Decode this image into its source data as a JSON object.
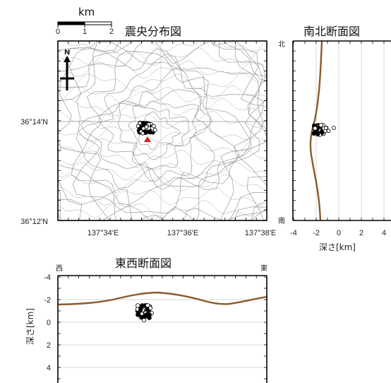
{
  "scale_bar": {
    "unit": "km",
    "ticks": [
      "0",
      "1",
      "2"
    ]
  },
  "map": {
    "title": "震央分布図",
    "north_label": "N",
    "lat_labels": [
      "36°14'N",
      "36°12'N"
    ],
    "lon_labels": [
      "137°34'E",
      "137°36'E",
      "137°38'E"
    ]
  },
  "ns_section": {
    "title": "南北断面図",
    "north_label": "北",
    "south_label": "南",
    "xlabel": "深さ[km]",
    "x_ticks": [
      "-4",
      "-2",
      "0",
      "2",
      "4"
    ]
  },
  "ew_section": {
    "title": "東西断面図",
    "west_label": "西",
    "east_label": "東",
    "ylabel": "深さ[km]",
    "y_ticks": [
      "-4",
      "-2",
      "0",
      "2",
      "4"
    ]
  },
  "colors": {
    "contour": "#8a8a8a",
    "topography_profile": "#8b5a2b",
    "epicenter": "#000000",
    "volcano_marker": "#d42020"
  },
  "icons": [
    "north-arrow-icon",
    "volcano-triangle-icon"
  ]
}
